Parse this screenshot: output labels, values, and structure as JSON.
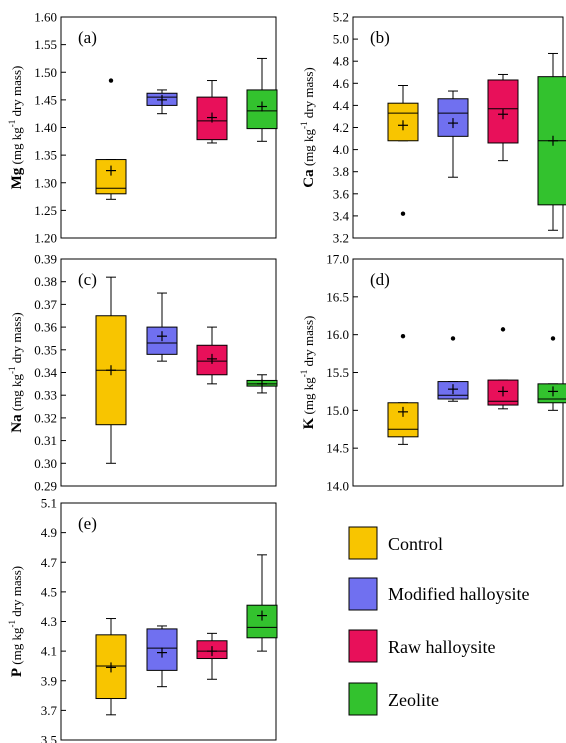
{
  "colors": {
    "Control": "#f8c500",
    "Modified halloysite": "#7070f0",
    "Raw halloysite": "#e8105a",
    "Zeolite": "#33c22e"
  },
  "legend": {
    "items": [
      "Control",
      "Modified halloysite",
      "Raw halloysite",
      "Zeolite"
    ]
  },
  "chart_data": [
    {
      "type": "box",
      "panel_label": "(a)",
      "ylabel_bold": "Mg",
      "ylabel_rest": " (mg kg",
      "ylabel_sup": "-1",
      "ylabel_end": " dry mass)",
      "ylim": [
        1.2,
        1.6
      ],
      "yticks": [
        "1.20",
        "1.25",
        "1.30",
        "1.35",
        "1.40",
        "1.45",
        "1.50",
        "1.55",
        "1.60"
      ],
      "series": [
        {
          "name": "Control",
          "min": 1.27,
          "q1": 1.28,
          "median": 1.29,
          "q3": 1.342,
          "max": 1.342,
          "mean": 1.322,
          "outliers": [
            1.485
          ]
        },
        {
          "name": "Modified halloysite",
          "min": 1.425,
          "q1": 1.44,
          "median": 1.455,
          "q3": 1.462,
          "max": 1.468,
          "mean": 1.45,
          "outliers": []
        },
        {
          "name": "Raw halloysite",
          "min": 1.372,
          "q1": 1.378,
          "median": 1.412,
          "q3": 1.455,
          "max": 1.485,
          "mean": 1.418,
          "outliers": []
        },
        {
          "name": "Zeolite",
          "min": 1.375,
          "q1": 1.398,
          "median": 1.43,
          "q3": 1.468,
          "max": 1.525,
          "mean": 1.438,
          "outliers": []
        }
      ]
    },
    {
      "type": "box",
      "panel_label": "(b)",
      "ylabel_bold": "Ca",
      "ylabel_rest": " (mg kg",
      "ylabel_sup": "-1",
      "ylabel_end": " dry mass)",
      "ylim": [
        3.2,
        5.2
      ],
      "yticks": [
        "3.2",
        "3.4",
        "3.6",
        "3.8",
        "4.0",
        "4.2",
        "4.4",
        "4.6",
        "4.8",
        "5.0",
        "5.2"
      ],
      "series": [
        {
          "name": "Control",
          "min": 4.08,
          "q1": 4.08,
          "median": 4.33,
          "q3": 4.42,
          "max": 4.58,
          "mean": 4.22,
          "outliers": [
            3.42
          ]
        },
        {
          "name": "Modified halloysite",
          "min": 3.75,
          "q1": 4.12,
          "median": 4.33,
          "q3": 4.46,
          "max": 4.53,
          "mean": 4.24,
          "outliers": []
        },
        {
          "name": "Raw halloysite",
          "min": 3.9,
          "q1": 4.06,
          "median": 4.37,
          "q3": 4.63,
          "max": 4.68,
          "mean": 4.32,
          "outliers": []
        },
        {
          "name": "Zeolite",
          "min": 3.27,
          "q1": 3.5,
          "median": 4.08,
          "q3": 4.66,
          "max": 4.87,
          "mean": 4.08,
          "outliers": []
        }
      ]
    },
    {
      "type": "box",
      "panel_label": "(c)",
      "ylabel_bold": "Na",
      "ylabel_rest": " (mg kg",
      "ylabel_sup": "-1",
      "ylabel_end": " dry mass)",
      "ylim": [
        0.29,
        0.39
      ],
      "yticks": [
        "0.29",
        "0.30",
        "0.31",
        "0.32",
        "0.33",
        "0.34",
        "0.35",
        "0.36",
        "0.37",
        "0.38",
        "0.39"
      ],
      "series": [
        {
          "name": "Control",
          "min": 0.3,
          "q1": 0.317,
          "median": 0.341,
          "q3": 0.365,
          "max": 0.382,
          "mean": 0.341,
          "outliers": []
        },
        {
          "name": "Modified halloysite",
          "min": 0.345,
          "q1": 0.348,
          "median": 0.353,
          "q3": 0.36,
          "max": 0.375,
          "mean": 0.356,
          "outliers": []
        },
        {
          "name": "Raw halloysite",
          "min": 0.335,
          "q1": 0.339,
          "median": 0.345,
          "q3": 0.352,
          "max": 0.36,
          "mean": 0.346,
          "outliers": []
        },
        {
          "name": "Zeolite",
          "min": 0.331,
          "q1": 0.334,
          "median": 0.335,
          "q3": 0.3365,
          "max": 0.339,
          "mean": 0.335,
          "outliers": []
        }
      ]
    },
    {
      "type": "box",
      "panel_label": "(d)",
      "ylabel_bold": "K",
      "ylabel_rest": " (mg kg",
      "ylabel_sup": "-1",
      "ylabel_end": " dry mass)",
      "ylim": [
        14.0,
        17.0
      ],
      "yticks": [
        "14.0",
        "14.5",
        "15.0",
        "15.5",
        "16.0",
        "16.5",
        "17.0"
      ],
      "series": [
        {
          "name": "Control",
          "min": 14.55,
          "q1": 14.65,
          "median": 14.75,
          "q3": 15.1,
          "max": 15.1,
          "mean": 14.98,
          "outliers": [
            15.98
          ]
        },
        {
          "name": "Modified halloysite",
          "min": 15.12,
          "q1": 15.15,
          "median": 15.2,
          "q3": 15.38,
          "max": 15.38,
          "mean": 15.28,
          "outliers": [
            15.95
          ]
        },
        {
          "name": "Raw halloysite",
          "min": 15.02,
          "q1": 15.07,
          "median": 15.12,
          "q3": 15.4,
          "max": 15.4,
          "mean": 15.25,
          "outliers": [
            16.07
          ]
        },
        {
          "name": "Zeolite",
          "min": 15.0,
          "q1": 15.1,
          "median": 15.15,
          "q3": 15.35,
          "max": 15.35,
          "mean": 15.25,
          "outliers": [
            15.95
          ]
        }
      ]
    },
    {
      "type": "box",
      "panel_label": "(e)",
      "ylabel_bold": "P",
      "ylabel_rest": " (mg kg",
      "ylabel_sup": "-1",
      "ylabel_end": " dry mass)",
      "ylim": [
        3.5,
        5.1
      ],
      "yticks": [
        "3.5",
        "3.7",
        "3.9",
        "4.1",
        "4.3",
        "4.5",
        "4.7",
        "4.9",
        "5.1"
      ],
      "series": [
        {
          "name": "Control",
          "min": 3.67,
          "q1": 3.78,
          "median": 4.0,
          "q3": 4.21,
          "max": 4.32,
          "mean": 3.99,
          "outliers": []
        },
        {
          "name": "Modified halloysite",
          "min": 3.86,
          "q1": 3.97,
          "median": 4.12,
          "q3": 4.25,
          "max": 4.27,
          "mean": 4.09,
          "outliers": []
        },
        {
          "name": "Raw halloysite",
          "min": 3.91,
          "q1": 4.05,
          "median": 4.1,
          "q3": 4.17,
          "max": 4.22,
          "mean": 4.1,
          "outliers": []
        },
        {
          "name": "Zeolite",
          "min": 4.1,
          "q1": 4.19,
          "median": 4.26,
          "q3": 4.41,
          "max": 4.75,
          "mean": 4.34,
          "outliers": []
        }
      ]
    }
  ]
}
